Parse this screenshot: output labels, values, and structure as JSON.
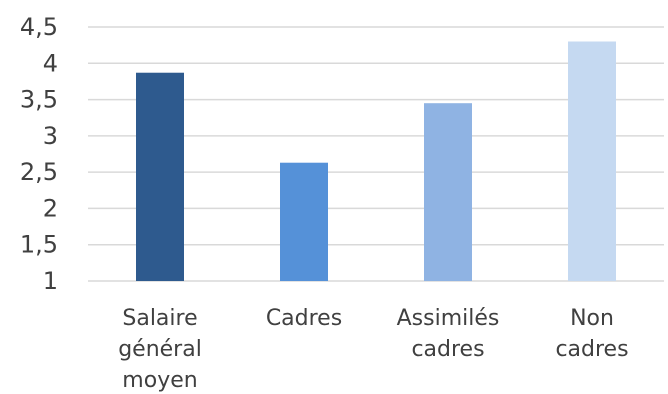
{
  "chart_data": {
    "type": "bar",
    "title": "",
    "xlabel": "",
    "ylabel": "",
    "categories": [
      [
        "Salaire",
        "général",
        "moyen"
      ],
      [
        "Cadres"
      ],
      [
        "Assimilés",
        "cadres"
      ],
      [
        "Non",
        "cadres"
      ]
    ],
    "values": [
      3.87,
      2.63,
      3.45,
      4.3
    ],
    "ylim": [
      1,
      4.5
    ],
    "yticks": [
      1,
      1.5,
      2,
      2.5,
      3,
      3.5,
      4,
      4.5
    ],
    "ytick_labels": [
      "1",
      "1,5",
      "2",
      "2,5",
      "3",
      "3,5",
      "4",
      "4,5"
    ],
    "bar_colors": [
      "#2e5a8e",
      "#5591d8",
      "#8fb3e3",
      "#c5d9f1"
    ],
    "grid": true,
    "legend": "none"
  }
}
